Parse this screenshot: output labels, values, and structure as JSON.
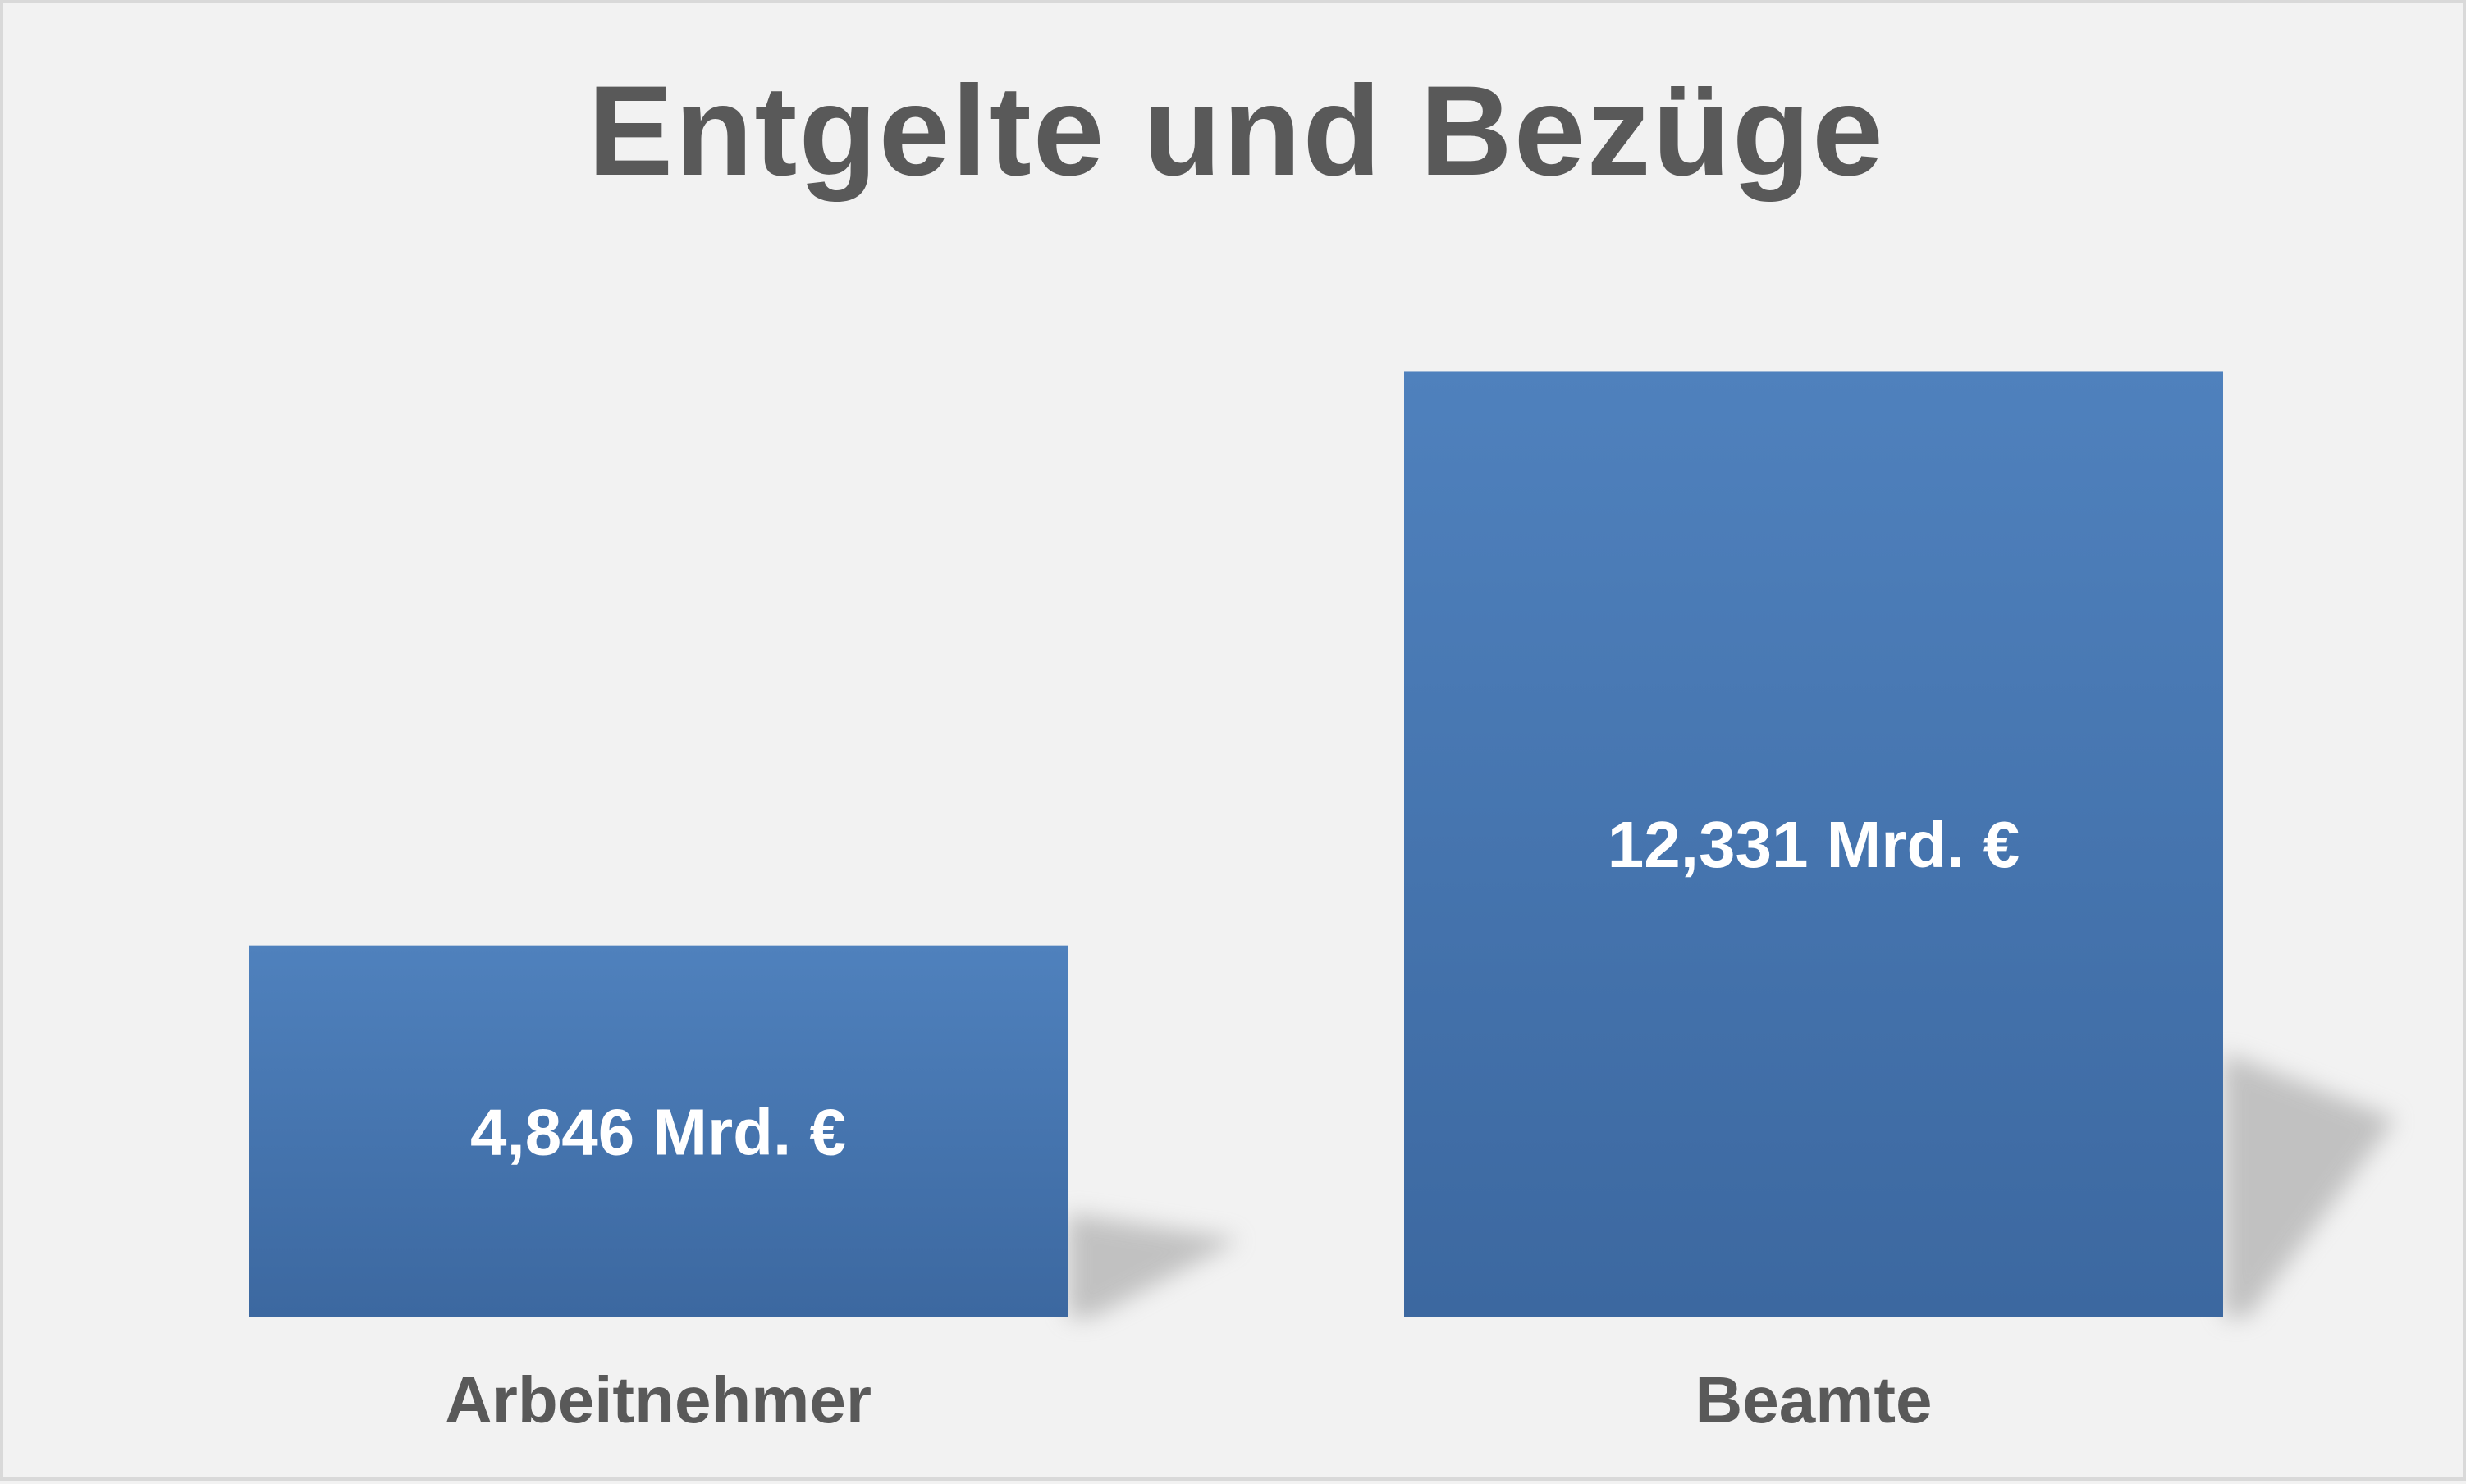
{
  "chart_data": {
    "type": "bar",
    "title": "Entgelte und Bezüge",
    "categories": [
      "Arbeitnehmer",
      "Beamte"
    ],
    "values": [
      4.846,
      12.331
    ],
    "value_labels": [
      "4,846 Mrd. €",
      "12,331 Mrd. €"
    ],
    "xlabel": "",
    "ylabel": "",
    "ylim": [
      0,
      15.5
    ],
    "grid": false,
    "legend": "none",
    "colors": {
      "bar_top": "#4f81bd",
      "bar_bottom": "#3c68a0",
      "text": "#595959",
      "value_text": "#ffffff",
      "background": "#f2f2f2"
    }
  }
}
